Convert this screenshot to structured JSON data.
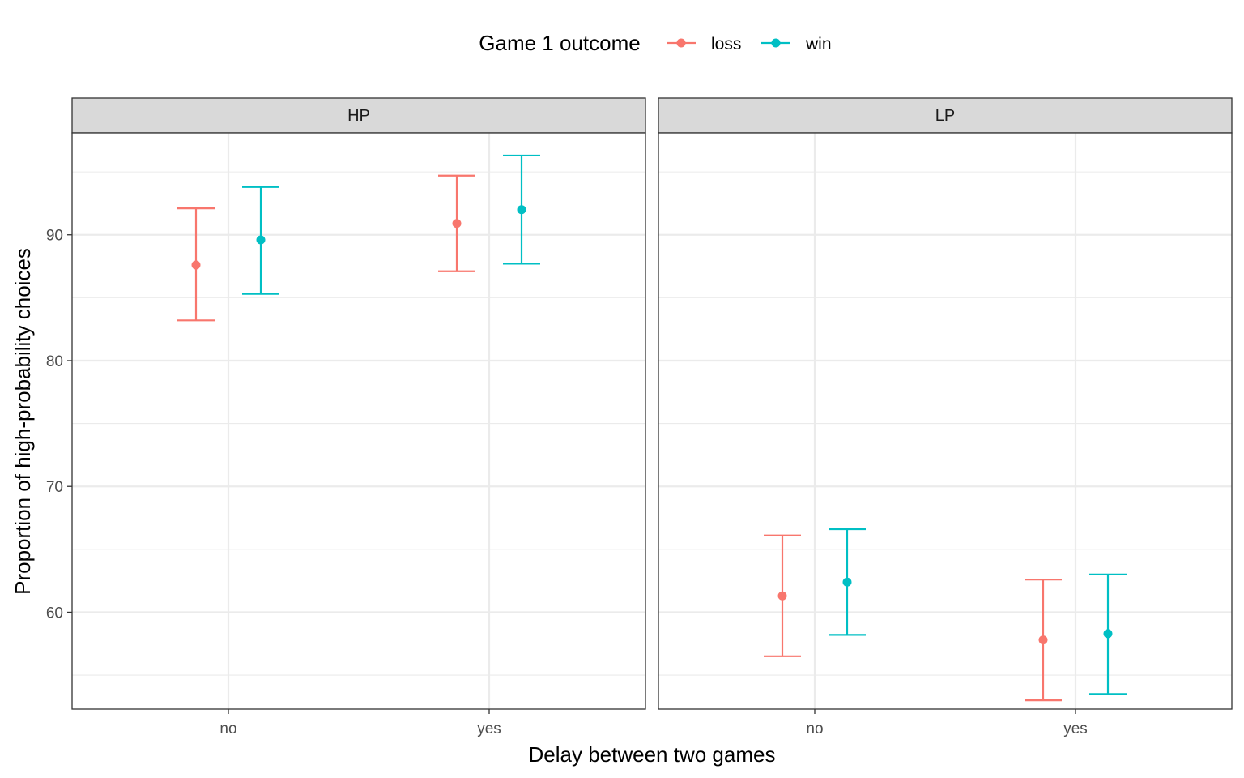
{
  "chart_data": {
    "type": "errorbar",
    "title": "",
    "xlabel": "Delay between two games",
    "ylabel": "Proportion of high-probability choices",
    "ylim": [
      52.3,
      98.1
    ],
    "yticks": [
      60,
      70,
      80,
      90
    ],
    "grid": true,
    "legend": {
      "title": "Game 1 outcome",
      "position": "top",
      "entries": [
        {
          "label": "loss",
          "color": "#F8766D"
        },
        {
          "label": "win",
          "color": "#00BFC4"
        }
      ]
    },
    "categories": [
      "no",
      "yes"
    ],
    "facets": [
      {
        "label": "HP",
        "series": [
          {
            "name": "loss",
            "color": "#F8766D",
            "points": [
              {
                "x": "no",
                "y": 87.6,
                "ymin": 83.2,
                "ymax": 92.1
              },
              {
                "x": "yes",
                "y": 90.9,
                "ymin": 87.1,
                "ymax": 94.7
              }
            ]
          },
          {
            "name": "win",
            "color": "#00BFC4",
            "points": [
              {
                "x": "no",
                "y": 89.6,
                "ymin": 85.3,
                "ymax": 93.8
              },
              {
                "x": "yes",
                "y": 92.0,
                "ymin": 87.7,
                "ymax": 96.3
              }
            ]
          }
        ]
      },
      {
        "label": "LP",
        "series": [
          {
            "name": "loss",
            "color": "#F8766D",
            "points": [
              {
                "x": "no",
                "y": 61.3,
                "ymin": 56.5,
                "ymax": 66.1
              },
              {
                "x": "yes",
                "y": 57.8,
                "ymin": 53.0,
                "ymax": 62.6
              }
            ]
          },
          {
            "name": "win",
            "color": "#00BFC4",
            "points": [
              {
                "x": "no",
                "y": 62.4,
                "ymin": 58.2,
                "ymax": 66.6
              },
              {
                "x": "yes",
                "y": 58.3,
                "ymin": 53.5,
                "ymax": 63.0
              }
            ]
          }
        ]
      }
    ]
  }
}
